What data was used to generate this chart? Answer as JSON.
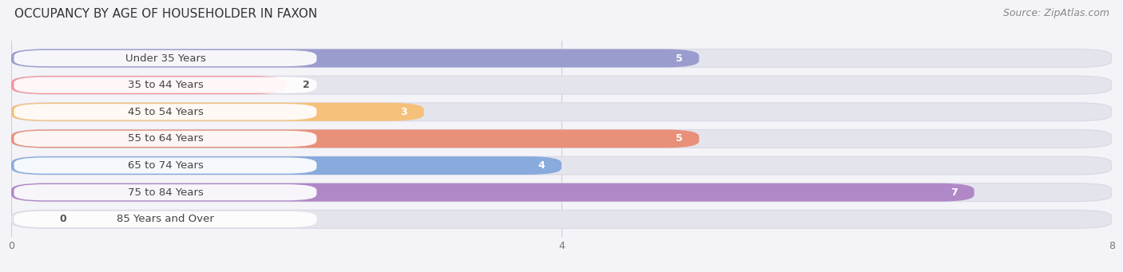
{
  "title": "OCCUPANCY BY AGE OF HOUSEHOLDER IN FAXON",
  "source": "Source: ZipAtlas.com",
  "categories": [
    "Under 35 Years",
    "35 to 44 Years",
    "45 to 54 Years",
    "55 to 64 Years",
    "65 to 74 Years",
    "75 to 84 Years",
    "85 Years and Over"
  ],
  "values": [
    5,
    2,
    3,
    5,
    4,
    7,
    0
  ],
  "bar_colors": [
    "#9b9cce",
    "#f5959e",
    "#f5c07a",
    "#e8907a",
    "#88aadd",
    "#b088c8",
    "#7dcfcf"
  ],
  "xlim": [
    0,
    8
  ],
  "xticks": [
    0,
    4,
    8
  ],
  "background_color": "#f4f4f8",
  "bar_bg_color": "#e4e4ec",
  "row_bg_color": "#eaeaf0",
  "title_fontsize": 11,
  "source_fontsize": 9,
  "label_fontsize": 9.5,
  "value_fontsize": 9
}
